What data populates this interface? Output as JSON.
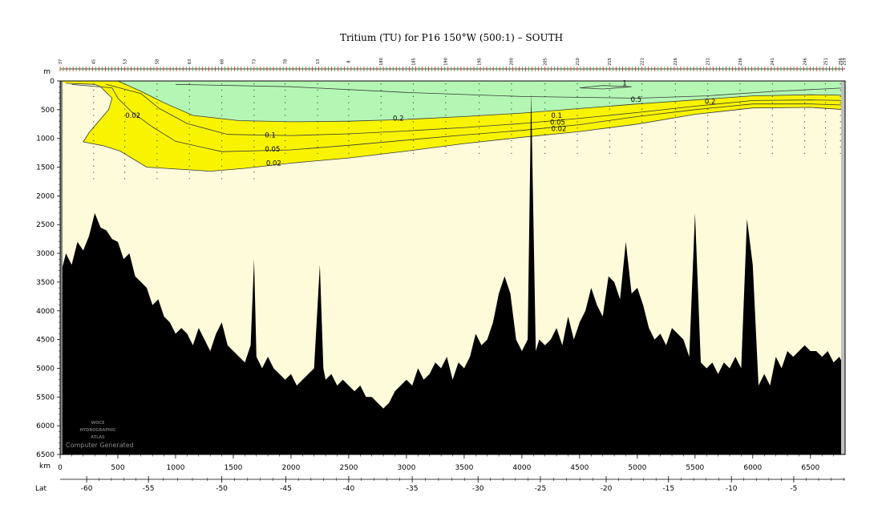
{
  "chart_data": {
    "type": "heatmap",
    "title": "Tritium (TU) for P16 150°W (500:1) – SOUTH",
    "depth_axis": {
      "unit": "m",
      "lim": [
        0,
        6500
      ],
      "ticks": [
        0,
        500,
        1000,
        1500,
        2000,
        2500,
        3000,
        3500,
        4000,
        4500,
        5000,
        5500,
        6000,
        6500
      ]
    },
    "distance_axis": {
      "unit": "km",
      "lim": [
        0,
        6800
      ],
      "ticks": [
        0,
        500,
        1000,
        1500,
        2000,
        2500,
        3000,
        3500,
        4000,
        4500,
        5000,
        5500,
        6000,
        6500
      ]
    },
    "latitude_axis": {
      "label": "Lat",
      "ticks": [
        -60,
        -55,
        -50,
        -45,
        -40,
        -35,
        -30,
        -25,
        -20,
        -15,
        -10,
        -5
      ],
      "ticks_km": [
        230,
        765,
        1400,
        1955,
        2500,
        3050,
        3620,
        4160,
        4730,
        5270,
        5815,
        6355
      ]
    },
    "station_labels": [
      {
        "label": "37",
        "km": 0
      },
      {
        "label": "45",
        "km": 290
      },
      {
        "label": "53",
        "km": 560
      },
      {
        "label": "58",
        "km": 840
      },
      {
        "label": "63",
        "km": 1120
      },
      {
        "label": "68",
        "km": 1400
      },
      {
        "label": "73",
        "km": 1680
      },
      {
        "label": "78",
        "km": 1950
      },
      {
        "label": "13",
        "km": 2230
      },
      {
        "label": "8",
        "km": 2500
      },
      {
        "label": "180",
        "km": 2780
      },
      {
        "label": "185",
        "km": 3060
      },
      {
        "label": "190",
        "km": 3340
      },
      {
        "label": "195",
        "km": 3630
      },
      {
        "label": "200",
        "km": 3910
      },
      {
        "label": "205",
        "km": 4200
      },
      {
        "label": "210",
        "km": 4480
      },
      {
        "label": "215",
        "km": 4760
      },
      {
        "label": "221",
        "km": 5040
      },
      {
        "label": "226",
        "km": 5330
      },
      {
        "label": "231",
        "km": 5610
      },
      {
        "label": "236",
        "km": 5890
      },
      {
        "label": "241",
        "km": 6170
      },
      {
        "label": "246",
        "km": 6450
      },
      {
        "label": "251",
        "km": 6630
      },
      {
        "label": "256",
        "km": 6760
      },
      {
        "label": "259",
        "km": 6790
      }
    ],
    "contour_levels": [
      0.02,
      0.05,
      0.1,
      0.2,
      0.5,
      1
    ],
    "fill_colors": {
      "below_0.02": "#fdfbd9",
      "0.02_to_0.2": "#f8f400",
      "above_0.2": "#b4f7b4",
      "bathymetry": "#000000",
      "contour_line": "#3a3a3a"
    },
    "contour_labels": [
      {
        "text": "0.02",
        "km": 630,
        "depth": 640
      },
      {
        "text": "0.2",
        "km": 2930,
        "depth": 690
      },
      {
        "text": "0.1",
        "km": 1820,
        "depth": 980
      },
      {
        "text": "0.05",
        "km": 1840,
        "depth": 1230
      },
      {
        "text": "0.02",
        "km": 1850,
        "depth": 1470
      },
      {
        "text": "0.1",
        "km": 4300,
        "depth": 640
      },
      {
        "text": "0.05",
        "km": 4310,
        "depth": 760
      },
      {
        "text": "0.02",
        "km": 4320,
        "depth": 870
      },
      {
        "text": "0.5",
        "km": 4990,
        "depth": 360
      },
      {
        "text": "0.2",
        "km": 5630,
        "depth": 400
      },
      {
        "text": "1",
        "km": 4890,
        "depth": 80
      }
    ],
    "isolines": [
      {
        "level": 0.02,
        "points": [
          [
            50,
            40
          ],
          [
            300,
            60
          ],
          [
            350,
            100
          ],
          [
            450,
            300
          ],
          [
            420,
            500
          ],
          [
            250,
            900
          ],
          [
            200,
            1060
          ],
          [
            380,
            1130
          ],
          [
            520,
            1220
          ],
          [
            750,
            1500
          ],
          [
            1300,
            1570
          ],
          [
            1600,
            1520
          ],
          [
            2000,
            1430
          ],
          [
            2500,
            1340
          ],
          [
            3000,
            1220
          ],
          [
            3500,
            1090
          ],
          [
            4000,
            980
          ],
          [
            4500,
            880
          ],
          [
            5000,
            750
          ],
          [
            5500,
            580
          ],
          [
            6000,
            470
          ],
          [
            6500,
            460
          ],
          [
            6800,
            500
          ]
        ]
      },
      {
        "level": 0.05,
        "points": [
          [
            100,
            60
          ],
          [
            450,
            120
          ],
          [
            500,
            300
          ],
          [
            620,
            540
          ],
          [
            800,
            800
          ],
          [
            1000,
            1050
          ],
          [
            1400,
            1230
          ],
          [
            2000,
            1200
          ],
          [
            2500,
            1120
          ],
          [
            3000,
            1030
          ],
          [
            3500,
            940
          ],
          [
            4000,
            860
          ],
          [
            4500,
            760
          ],
          [
            5000,
            620
          ],
          [
            5500,
            500
          ],
          [
            6000,
            400
          ],
          [
            6500,
            400
          ],
          [
            6800,
            420
          ]
        ]
      },
      {
        "level": 0.1,
        "points": [
          [
            400,
            60
          ],
          [
            700,
            220
          ],
          [
            860,
            480
          ],
          [
            1100,
            740
          ],
          [
            1450,
            930
          ],
          [
            2000,
            950
          ],
          [
            2500,
            920
          ],
          [
            3000,
            870
          ],
          [
            3500,
            810
          ],
          [
            4000,
            740
          ],
          [
            4500,
            650
          ],
          [
            5000,
            550
          ],
          [
            5500,
            440
          ],
          [
            6000,
            340
          ],
          [
            6500,
            330
          ],
          [
            6800,
            340
          ]
        ]
      },
      {
        "level": 0.2,
        "points": [
          [
            500,
            0
          ],
          [
            700,
            180
          ],
          [
            900,
            380
          ],
          [
            1150,
            600
          ],
          [
            1550,
            690
          ],
          [
            2000,
            710
          ],
          [
            2500,
            700
          ],
          [
            3000,
            670
          ],
          [
            3500,
            620
          ],
          [
            4000,
            560
          ],
          [
            4500,
            480
          ],
          [
            5000,
            400
          ],
          [
            5500,
            330
          ],
          [
            6000,
            260
          ],
          [
            6500,
            240
          ],
          [
            6800,
            250
          ]
        ]
      },
      {
        "level": 0.5,
        "points": [
          [
            1000,
            60
          ],
          [
            2000,
            100
          ],
          [
            3000,
            200
          ],
          [
            4000,
            270
          ],
          [
            5000,
            300
          ],
          [
            5600,
            260
          ],
          [
            6200,
            180
          ],
          [
            6800,
            120
          ]
        ]
      },
      {
        "level": 1,
        "points": [
          [
            4500,
            120
          ],
          [
            4700,
            80
          ],
          [
            4950,
            100
          ],
          [
            4700,
            140
          ],
          [
            4500,
            120
          ]
        ]
      }
    ],
    "bathymetry_depth_m": [
      [
        0,
        3400
      ],
      [
        50,
        3000
      ],
      [
        100,
        3200
      ],
      [
        150,
        2800
      ],
      [
        200,
        2950
      ],
      [
        250,
        2700
      ],
      [
        300,
        2300
      ],
      [
        350,
        2550
      ],
      [
        400,
        2600
      ],
      [
        450,
        2750
      ],
      [
        500,
        2800
      ],
      [
        550,
        3100
      ],
      [
        600,
        3000
      ],
      [
        650,
        3400
      ],
      [
        700,
        3500
      ],
      [
        750,
        3600
      ],
      [
        800,
        3900
      ],
      [
        850,
        3800
      ],
      [
        900,
        4100
      ],
      [
        950,
        4200
      ],
      [
        1000,
        4400
      ],
      [
        1050,
        4300
      ],
      [
        1100,
        4400
      ],
      [
        1150,
        4600
      ],
      [
        1200,
        4300
      ],
      [
        1250,
        4500
      ],
      [
        1300,
        4700
      ],
      [
        1350,
        4400
      ],
      [
        1400,
        4200
      ],
      [
        1450,
        4600
      ],
      [
        1500,
        4700
      ],
      [
        1550,
        4800
      ],
      [
        1600,
        4900
      ],
      [
        1650,
        4600
      ],
      [
        1680,
        3100
      ],
      [
        1700,
        4800
      ],
      [
        1750,
        5000
      ],
      [
        1800,
        4800
      ],
      [
        1850,
        5000
      ],
      [
        1900,
        5100
      ],
      [
        1950,
        5200
      ],
      [
        2000,
        5100
      ],
      [
        2050,
        5300
      ],
      [
        2100,
        5200
      ],
      [
        2150,
        5100
      ],
      [
        2200,
        5000
      ],
      [
        2250,
        3200
      ],
      [
        2280,
        5000
      ],
      [
        2300,
        5200
      ],
      [
        2350,
        5100
      ],
      [
        2400,
        5300
      ],
      [
        2450,
        5200
      ],
      [
        2500,
        5300
      ],
      [
        2550,
        5400
      ],
      [
        2600,
        5300
      ],
      [
        2650,
        5500
      ],
      [
        2700,
        5500
      ],
      [
        2750,
        5600
      ],
      [
        2800,
        5700
      ],
      [
        2850,
        5600
      ],
      [
        2900,
        5400
      ],
      [
        2950,
        5300
      ],
      [
        3000,
        5200
      ],
      [
        3050,
        5300
      ],
      [
        3100,
        5000
      ],
      [
        3150,
        5200
      ],
      [
        3200,
        5100
      ],
      [
        3250,
        4900
      ],
      [
        3300,
        5000
      ],
      [
        3350,
        4800
      ],
      [
        3400,
        5200
      ],
      [
        3450,
        4900
      ],
      [
        3500,
        5000
      ],
      [
        3550,
        4800
      ],
      [
        3600,
        4400
      ],
      [
        3650,
        4600
      ],
      [
        3700,
        4500
      ],
      [
        3750,
        4200
      ],
      [
        3800,
        3700
      ],
      [
        3850,
        3400
      ],
      [
        3900,
        3700
      ],
      [
        3950,
        4500
      ],
      [
        4000,
        4700
      ],
      [
        4050,
        4500
      ],
      [
        4080,
        200
      ],
      [
        4120,
        4700
      ],
      [
        4150,
        4500
      ],
      [
        4200,
        4600
      ],
      [
        4250,
        4500
      ],
      [
        4300,
        4300
      ],
      [
        4350,
        4600
      ],
      [
        4400,
        4100
      ],
      [
        4450,
        4500
      ],
      [
        4500,
        4200
      ],
      [
        4550,
        4000
      ],
      [
        4600,
        3600
      ],
      [
        4650,
        3900
      ],
      [
        4700,
        4100
      ],
      [
        4750,
        3400
      ],
      [
        4800,
        3500
      ],
      [
        4850,
        3800
      ],
      [
        4900,
        2800
      ],
      [
        4950,
        3700
      ],
      [
        5000,
        3600
      ],
      [
        5050,
        3900
      ],
      [
        5100,
        4300
      ],
      [
        5150,
        4500
      ],
      [
        5200,
        4400
      ],
      [
        5250,
        4600
      ],
      [
        5300,
        4300
      ],
      [
        5350,
        4400
      ],
      [
        5400,
        4500
      ],
      [
        5450,
        4800
      ],
      [
        5500,
        2300
      ],
      [
        5550,
        4900
      ],
      [
        5600,
        5000
      ],
      [
        5650,
        4900
      ],
      [
        5700,
        5100
      ],
      [
        5750,
        4900
      ],
      [
        5800,
        5000
      ],
      [
        5850,
        4800
      ],
      [
        5900,
        5000
      ],
      [
        5950,
        2400
      ],
      [
        6000,
        3200
      ],
      [
        6050,
        5300
      ],
      [
        6100,
        5100
      ],
      [
        6150,
        5300
      ],
      [
        6200,
        4800
      ],
      [
        6250,
        5000
      ],
      [
        6300,
        4700
      ],
      [
        6350,
        4800
      ],
      [
        6400,
        4700
      ],
      [
        6450,
        4600
      ],
      [
        6500,
        4700
      ],
      [
        6550,
        4700
      ],
      [
        6600,
        4800
      ],
      [
        6650,
        4700
      ],
      [
        6700,
        4900
      ],
      [
        6750,
        4800
      ],
      [
        6800,
        5000
      ]
    ]
  },
  "watermark": {
    "line1": "WOCE",
    "line2": "HYDROGRAPHIC",
    "line3": "ATLAS",
    "credit": "Computer Generated"
  }
}
